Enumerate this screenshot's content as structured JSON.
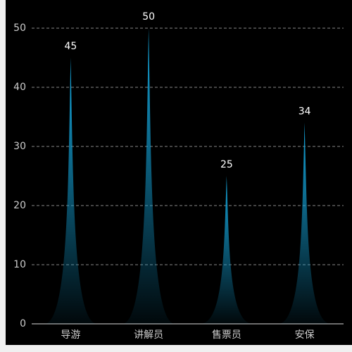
{
  "chart_data": {
    "type": "pictorial-bar",
    "categories": [
      "导游",
      "讲解员",
      "售票员",
      "安保"
    ],
    "values": [
      45,
      50,
      25,
      34
    ],
    "color": "#14a6dc",
    "ylim": [
      0,
      50
    ],
    "yticks": [
      0,
      10,
      20,
      30,
      40,
      50
    ],
    "grid": true
  }
}
